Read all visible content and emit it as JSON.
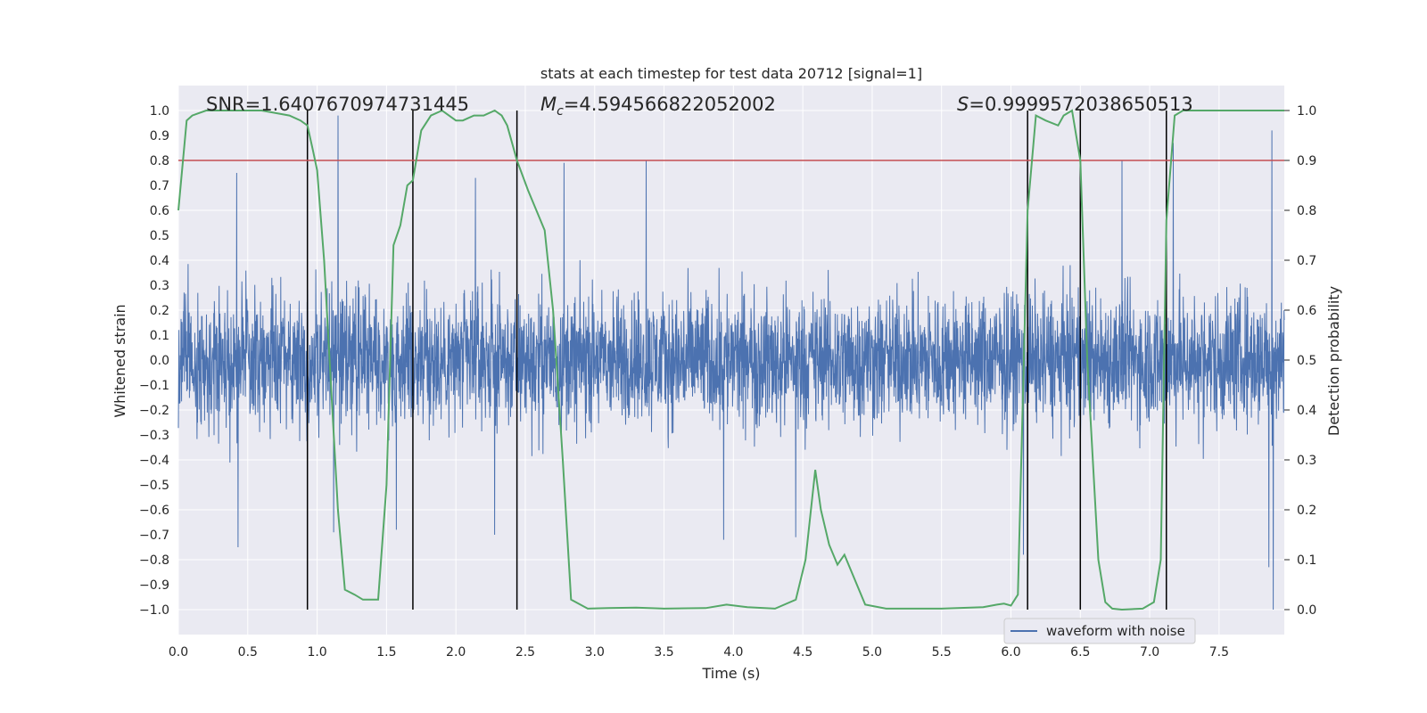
{
  "chart_data": {
    "type": "line",
    "title": "stats at each timestep for test data 20712 [signal=1]",
    "xlabel": "Time (s)",
    "ylabel": "Whitened strain",
    "y2label": "Detection probability",
    "xlim": [
      0.0,
      7.97
    ],
    "ylim": [
      -1.1,
      1.1
    ],
    "y2lim": [
      -0.05,
      1.05
    ],
    "x_ticks": [
      0.0,
      0.5,
      1.0,
      1.5,
      2.0,
      2.5,
      3.0,
      3.5,
      4.0,
      4.5,
      5.0,
      5.5,
      6.0,
      6.5,
      7.0,
      7.5
    ],
    "x_tick_labels": [
      "0.0",
      "0.5",
      "1.0",
      "1.5",
      "2.0",
      "2.5",
      "3.0",
      "3.5",
      "4.0",
      "4.5",
      "5.0",
      "5.5",
      "6.0",
      "6.5",
      "7.0",
      "7.5"
    ],
    "y_ticks": [
      -1.0,
      -0.9,
      -0.8,
      -0.7,
      -0.6,
      -0.5,
      -0.4,
      -0.3,
      -0.2,
      -0.1,
      0.0,
      0.1,
      0.2,
      0.3,
      0.4,
      0.5,
      0.6,
      0.7,
      0.8,
      0.9,
      1.0
    ],
    "y_tick_labels": [
      "−1.0",
      "−0.9",
      "−0.8",
      "−0.7",
      "−0.6",
      "−0.5",
      "−0.4",
      "−0.3",
      "−0.2",
      "−0.1",
      "0.0",
      "0.1",
      "0.2",
      "0.3",
      "0.4",
      "0.5",
      "0.6",
      "0.7",
      "0.8",
      "0.9",
      "1.0"
    ],
    "y2_ticks": [
      0.0,
      0.1,
      0.2,
      0.3,
      0.4,
      0.5,
      0.6,
      0.7,
      0.8,
      0.9,
      1.0
    ],
    "y2_tick_labels": [
      "0.0",
      "0.1",
      "0.2",
      "0.3",
      "0.4",
      "0.5",
      "0.6",
      "0.7",
      "0.8",
      "0.9",
      "1.0"
    ],
    "annotations": {
      "snr": "SNR=1.6407670974731445",
      "mc_symbol": "M",
      "mc_sub": "c",
      "mc_value": "=4.594566822052002",
      "s_symbol": "S",
      "s_value": "=0.9999572038650513"
    },
    "legend": {
      "label": "waveform with noise",
      "position": "lower-right"
    },
    "threshold": {
      "value": 0.9,
      "axis": "y2",
      "color": "#c44e52"
    },
    "vlines": [
      0.93,
      1.69,
      2.44,
      6.12,
      6.5,
      7.12
    ],
    "vline_range": [
      -1.0,
      1.0
    ],
    "waveform": {
      "name": "waveform with noise",
      "color": "#4c72b0",
      "t_start": 0.0,
      "t_end": 7.97,
      "n_points": 4096,
      "noise_envelope": 0.42,
      "peaks": [
        {
          "x": 0.42,
          "y": 0.75
        },
        {
          "x": 0.43,
          "y": -0.75
        },
        {
          "x": 1.15,
          "y": 0.98
        },
        {
          "x": 1.12,
          "y": -0.69
        },
        {
          "x": 1.57,
          "y": -0.68
        },
        {
          "x": 2.14,
          "y": 0.73
        },
        {
          "x": 2.28,
          "y": -0.7
        },
        {
          "x": 2.78,
          "y": 0.79
        },
        {
          "x": 3.37,
          "y": 0.8
        },
        {
          "x": 3.93,
          "y": -0.72
        },
        {
          "x": 4.45,
          "y": -0.71
        },
        {
          "x": 6.09,
          "y": -0.78
        },
        {
          "x": 6.8,
          "y": 0.8
        },
        {
          "x": 7.17,
          "y": 0.87
        },
        {
          "x": 7.88,
          "y": 0.92
        },
        {
          "x": 7.89,
          "y": -1.0
        },
        {
          "x": 7.86,
          "y": -0.83
        }
      ]
    },
    "series": [
      {
        "name": "Detection probability",
        "axis": "y2",
        "color": "#55a868",
        "x": [
          0.0,
          0.06,
          0.1,
          0.2,
          0.4,
          0.6,
          0.8,
          0.88,
          0.93,
          0.97,
          1.0,
          1.05,
          1.1,
          1.15,
          1.2,
          1.27,
          1.33,
          1.4,
          1.44,
          1.5,
          1.55,
          1.6,
          1.65,
          1.69,
          1.75,
          1.82,
          1.9,
          2.0,
          2.05,
          2.13,
          2.2,
          2.28,
          2.33,
          2.37,
          2.44,
          2.52,
          2.58,
          2.64,
          2.7,
          2.77,
          2.83,
          2.95,
          3.1,
          3.3,
          3.5,
          3.8,
          3.95,
          4.1,
          4.3,
          4.45,
          4.52,
          4.59,
          4.63,
          4.69,
          4.75,
          4.8,
          4.86,
          4.95,
          5.1,
          5.5,
          5.8,
          5.9,
          5.95,
          6.0,
          6.05,
          6.12,
          6.18,
          6.25,
          6.34,
          6.38,
          6.44,
          6.5,
          6.55,
          6.63,
          6.68,
          6.73,
          6.8,
          6.95,
          7.03,
          7.08,
          7.12,
          7.18,
          7.24,
          7.3,
          7.5,
          7.97
        ],
        "values": [
          0.8,
          0.98,
          0.99,
          1.0,
          1.0,
          1.0,
          0.99,
          0.98,
          0.97,
          0.92,
          0.88,
          0.7,
          0.45,
          0.2,
          0.04,
          0.03,
          0.02,
          0.02,
          0.02,
          0.25,
          0.73,
          0.77,
          0.85,
          0.86,
          0.96,
          0.99,
          1.0,
          0.98,
          0.98,
          0.99,
          0.99,
          1.0,
          0.99,
          0.97,
          0.9,
          0.84,
          0.8,
          0.76,
          0.6,
          0.3,
          0.02,
          0.002,
          0.003,
          0.004,
          0.002,
          0.003,
          0.01,
          0.005,
          0.002,
          0.02,
          0.1,
          0.28,
          0.2,
          0.13,
          0.09,
          0.11,
          0.07,
          0.01,
          0.002,
          0.002,
          0.005,
          0.01,
          0.012,
          0.008,
          0.03,
          0.8,
          0.99,
          0.98,
          0.97,
          0.99,
          1.0,
          0.9,
          0.5,
          0.1,
          0.015,
          0.002,
          0.0,
          0.002,
          0.015,
          0.1,
          0.78,
          0.99,
          1.0,
          1.0,
          1.0,
          1.0
        ]
      }
    ]
  }
}
